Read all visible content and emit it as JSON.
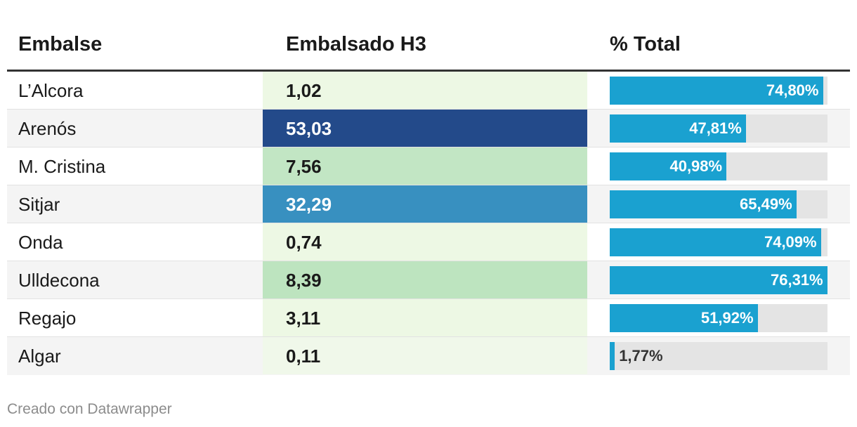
{
  "chart_data": {
    "type": "table",
    "columns": [
      "Embalse",
      "Embalsado H3",
      "% Total"
    ],
    "rows": [
      {
        "name": "L’Alcora",
        "volume": 1.02,
        "volume_label": "1,02",
        "pct": 74.8,
        "pct_label": "74,80%",
        "vol_color": "#edf8e4",
        "vol_text_color": "#1a1a1a"
      },
      {
        "name": "Arenós",
        "volume": 53.03,
        "volume_label": "53,03",
        "pct": 47.81,
        "pct_label": "47,81%",
        "vol_color": "#234a8a",
        "vol_text_color": "#ffffff"
      },
      {
        "name": "M. Cristina",
        "volume": 7.56,
        "volume_label": "7,56",
        "pct": 40.98,
        "pct_label": "40,98%",
        "vol_color": "#c2e6c4",
        "vol_text_color": "#1a1a1a"
      },
      {
        "name": "Sitjar",
        "volume": 32.29,
        "volume_label": "32,29",
        "pct": 65.49,
        "pct_label": "65,49%",
        "vol_color": "#3890c0",
        "vol_text_color": "#ffffff"
      },
      {
        "name": "Onda",
        "volume": 0.74,
        "volume_label": "0,74",
        "pct": 74.09,
        "pct_label": "74,09%",
        "vol_color": "#edf8e4",
        "vol_text_color": "#1a1a1a"
      },
      {
        "name": "Ulldecona",
        "volume": 8.39,
        "volume_label": "8,39",
        "pct": 76.31,
        "pct_label": "76,31%",
        "vol_color": "#bde4bf",
        "vol_text_color": "#1a1a1a"
      },
      {
        "name": "Regajo",
        "volume": 3.11,
        "volume_label": "3,11",
        "pct": 51.92,
        "pct_label": "51,92%",
        "vol_color": "#edf8e4",
        "vol_text_color": "#1a1a1a"
      },
      {
        "name": "Algar",
        "volume": 0.11,
        "volume_label": "0,11",
        "pct": 1.77,
        "pct_label": "1,77%",
        "vol_color": "#f0f8ea",
        "vol_text_color": "#1a1a1a"
      }
    ],
    "pct_max": 76.31,
    "bar_color": "#1aa1d0",
    "bar_track_color": "#e4e4e4"
  },
  "header": {
    "col_name": "Embalse",
    "col_volume": "Embalsado H3",
    "col_pct": "% Total"
  },
  "footer": {
    "credit": "Creado con Datawrapper"
  }
}
